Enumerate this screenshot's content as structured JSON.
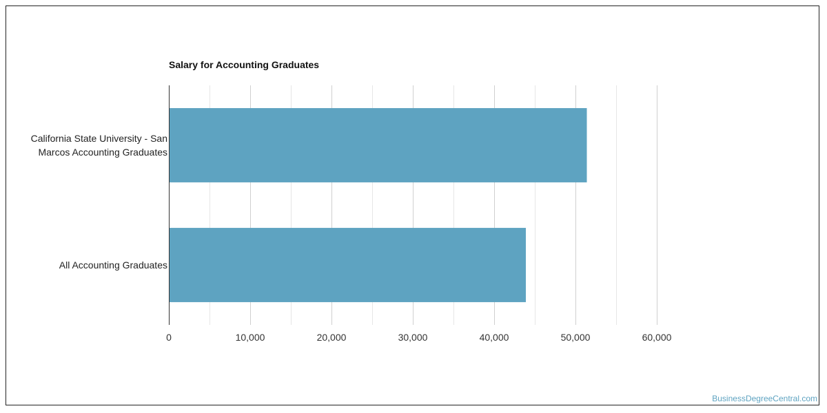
{
  "chart_data": {
    "type": "bar",
    "orientation": "horizontal",
    "title": "Salary for Accounting Graduates",
    "categories": [
      [
        "California State University - San",
        "Marcos Accounting Graduates"
      ],
      [
        "All Accounting Graduates"
      ]
    ],
    "values": [
      51400,
      43900
    ],
    "xlim": [
      0,
      60000
    ],
    "xticks": [
      0,
      10000,
      20000,
      30000,
      40000,
      50000,
      60000
    ],
    "xtick_labels": [
      "0",
      "10,000",
      "20,000",
      "30,000",
      "40,000",
      "50,000",
      "60,000"
    ],
    "minor_grid_step": 5000,
    "grid": true,
    "bar_color": "#5ea3c1",
    "xlabel": "",
    "ylabel": ""
  },
  "watermark": "BusinessDegreeCentral.com"
}
